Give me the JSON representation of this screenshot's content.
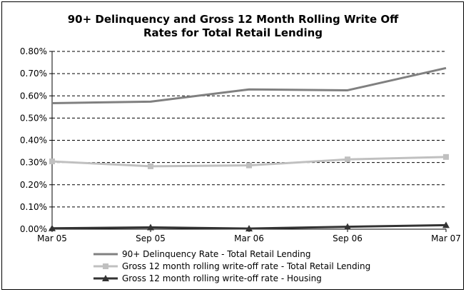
{
  "chart_data": {
    "type": "line",
    "title": "90+ Delinquency and Gross 12 Month Rolling Write Off Rates for Total Retail Lending",
    "title_lines": [
      "90+ Delinquency and Gross 12 Month Rolling Write Off",
      "Rates for Total Retail Lending"
    ],
    "xlabel": "",
    "ylabel": "",
    "categories": [
      "Mar 05",
      "Sep 05",
      "Mar 06",
      "Sep 06",
      "Mar 07"
    ],
    "ylim": [
      0,
      0.8
    ],
    "y_ticks": [
      0,
      0.1,
      0.2,
      0.3,
      0.4,
      0.5,
      0.6,
      0.7,
      0.8
    ],
    "y_tick_labels": [
      "0.00%",
      "0.10%",
      "0.20%",
      "0.30%",
      "0.40%",
      "0.50%",
      "0.60%",
      "0.70%",
      "0.80%"
    ],
    "grid": "horizontal-dashed",
    "legend_position": "bottom",
    "series": [
      {
        "name": "90+ Delinquency Rate - Total Retail Lending",
        "values": [
          0.567,
          0.574,
          0.629,
          0.625,
          0.725
        ],
        "color": "#808080",
        "marker": "none"
      },
      {
        "name": "Gross 12 month rolling write-off rate - Total Retail Lending",
        "values": [
          0.305,
          0.283,
          0.287,
          0.314,
          0.325
        ],
        "color": "#c0c0c0",
        "marker": "square"
      },
      {
        "name": "Gross 12 month rolling write-off rate - Housing",
        "values": [
          0.004,
          0.008,
          0.003,
          0.011,
          0.018
        ],
        "color": "#333333",
        "marker": "triangle"
      }
    ]
  }
}
